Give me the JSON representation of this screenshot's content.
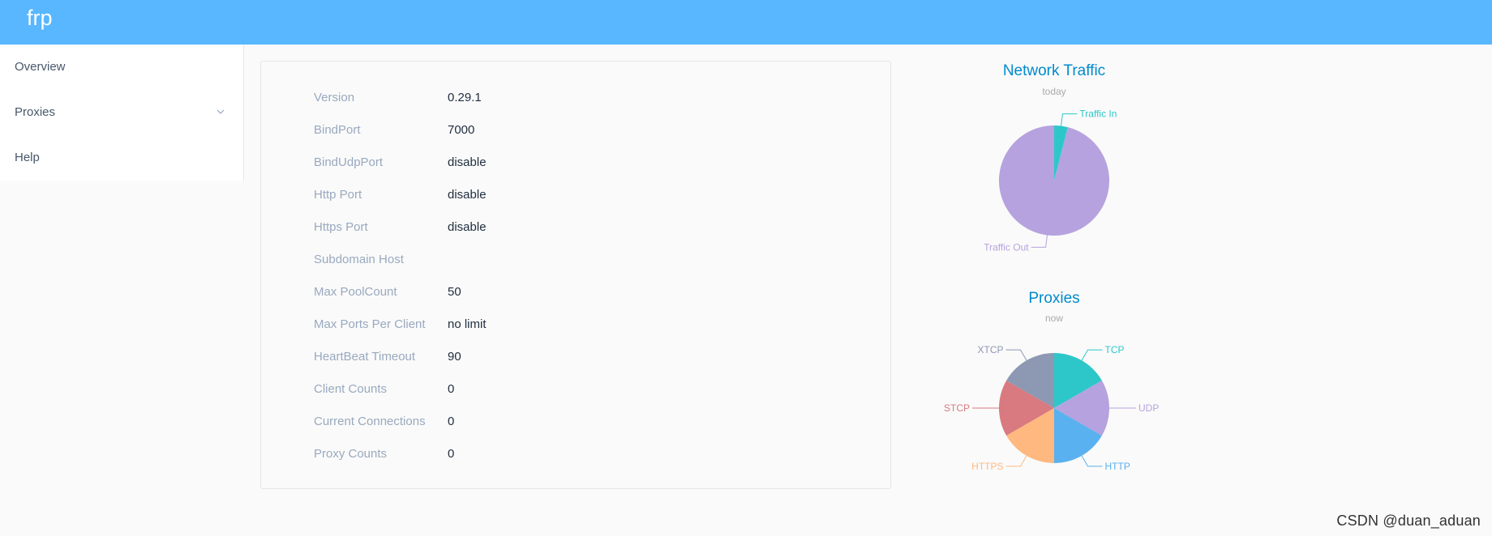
{
  "app": {
    "title": "frp"
  },
  "sidebar": {
    "items": [
      {
        "label": "Overview"
      },
      {
        "label": "Proxies"
      },
      {
        "label": "Help"
      }
    ]
  },
  "overview": {
    "rows": [
      {
        "label": "Version",
        "value": "0.29.1"
      },
      {
        "label": "BindPort",
        "value": "7000"
      },
      {
        "label": "BindUdpPort",
        "value": "disable"
      },
      {
        "label": "Http Port",
        "value": "disable"
      },
      {
        "label": "Https Port",
        "value": "disable"
      },
      {
        "label": "Subdomain Host",
        "value": ""
      },
      {
        "label": "Max PoolCount",
        "value": "50"
      },
      {
        "label": "Max Ports Per Client",
        "value": "no limit"
      },
      {
        "label": "HeartBeat Timeout",
        "value": "90"
      },
      {
        "label": "Client Counts",
        "value": "0"
      },
      {
        "label": "Current Connections",
        "value": "0"
      },
      {
        "label": "Proxy Counts",
        "value": "0"
      }
    ]
  },
  "chart_data": [
    {
      "type": "pie",
      "title": "Network Traffic",
      "subtitle": "today",
      "categories": [
        "Traffic In",
        "Traffic Out"
      ],
      "values": [
        4,
        96
      ],
      "colors": [
        "#2ec7c9",
        "#b6a2de"
      ]
    },
    {
      "type": "pie",
      "title": "Proxies",
      "subtitle": "now",
      "categories": [
        "TCP",
        "UDP",
        "HTTP",
        "HTTPS",
        "STCP",
        "XTCP"
      ],
      "values": [
        1,
        1,
        1,
        1,
        1,
        1
      ],
      "colors": [
        "#2ec7c9",
        "#b6a2de",
        "#5ab1ef",
        "#ffb980",
        "#d87a80",
        "#8d98b3"
      ]
    }
  ],
  "watermark": {
    "text": "CSDN @duan_aduan"
  },
  "theme": {
    "header": "#58b7ff",
    "title": "#008acd",
    "subtitle": "#aaaaaa"
  }
}
